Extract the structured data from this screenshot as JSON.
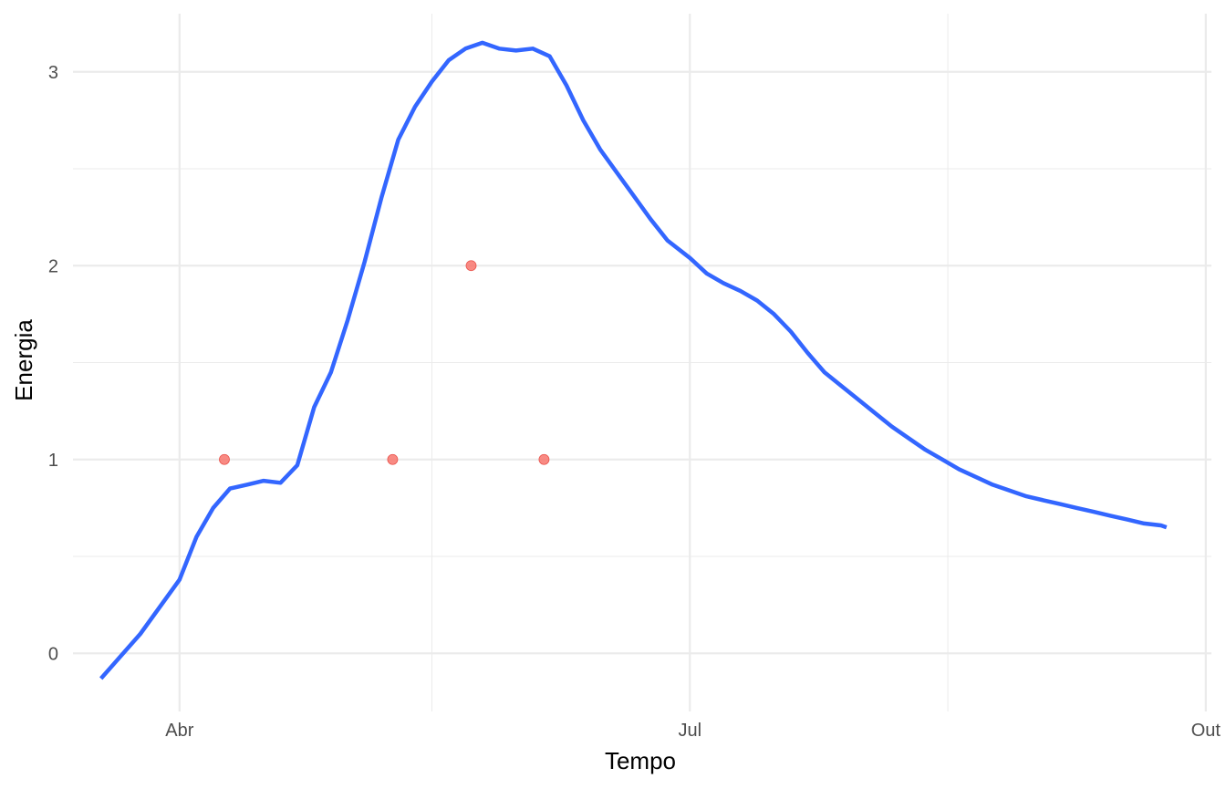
{
  "chart_data": {
    "type": "line",
    "title": "",
    "xlabel": "Tempo",
    "ylabel": "Energia",
    "x_ticks": [
      {
        "value": "2024-04-01",
        "label": "Abr"
      },
      {
        "value": "2024-07-01",
        "label": "Jul"
      },
      {
        "value": "2024-10-01",
        "label": "Out"
      }
    ],
    "x_minor_gridlines": [
      "2024-05-16",
      "2024-08-16"
    ],
    "y_ticks": [
      0,
      1,
      2,
      3
    ],
    "y_minor_gridlines": [
      0.5,
      1.5,
      2.5
    ],
    "xlim": [
      "2024-03-13",
      "2024-10-02"
    ],
    "ylim": [
      -0.3,
      3.3
    ],
    "grid": true,
    "legend": "none",
    "colors": {
      "line": "#3366ff",
      "points": "#f8766d",
      "grid": "#ebebeb"
    },
    "series": [
      {
        "type": "line",
        "x": [
          "2024-03-18",
          "2024-03-25",
          "2024-04-01",
          "2024-04-04",
          "2024-04-07",
          "2024-04-10",
          "2024-04-13",
          "2024-04-16",
          "2024-04-19",
          "2024-04-22",
          "2024-04-25",
          "2024-04-28",
          "2024-05-01",
          "2024-05-04",
          "2024-05-07",
          "2024-05-10",
          "2024-05-13",
          "2024-05-16",
          "2024-05-19",
          "2024-05-22",
          "2024-05-25",
          "2024-05-28",
          "2024-05-31",
          "2024-06-03",
          "2024-06-06",
          "2024-06-09",
          "2024-06-12",
          "2024-06-15",
          "2024-06-18",
          "2024-06-21",
          "2024-06-24",
          "2024-06-27",
          "2024-07-01",
          "2024-07-04",
          "2024-07-07",
          "2024-07-10",
          "2024-07-13",
          "2024-07-16",
          "2024-07-19",
          "2024-07-22",
          "2024-07-25",
          "2024-07-28",
          "2024-07-31",
          "2024-08-03",
          "2024-08-06",
          "2024-08-09",
          "2024-08-12",
          "2024-08-15",
          "2024-08-18",
          "2024-08-21",
          "2024-08-24",
          "2024-08-27",
          "2024-08-30",
          "2024-09-02",
          "2024-09-05",
          "2024-09-08",
          "2024-09-11",
          "2024-09-14",
          "2024-09-17",
          "2024-09-20",
          "2024-09-23",
          "2024-09-24"
        ],
        "values": [
          -0.13,
          0.1,
          0.38,
          0.6,
          0.75,
          0.85,
          0.87,
          0.89,
          0.88,
          0.97,
          1.27,
          1.45,
          1.72,
          2.02,
          2.35,
          2.65,
          2.82,
          2.95,
          3.06,
          3.12,
          3.15,
          3.12,
          3.11,
          3.12,
          3.08,
          2.93,
          2.75,
          2.6,
          2.48,
          2.36,
          2.24,
          2.13,
          2.04,
          1.96,
          1.91,
          1.87,
          1.82,
          1.75,
          1.66,
          1.55,
          1.45,
          1.38,
          1.31,
          1.24,
          1.17,
          1.11,
          1.05,
          1.0,
          0.95,
          0.91,
          0.87,
          0.84,
          0.81,
          0.79,
          0.77,
          0.75,
          0.73,
          0.71,
          0.69,
          0.67,
          0.66,
          0.65
        ]
      },
      {
        "type": "scatter",
        "x": [
          "2024-04-09",
          "2024-05-09",
          "2024-05-23",
          "2024-06-05"
        ],
        "values": [
          1,
          1,
          2,
          1
        ]
      }
    ]
  }
}
